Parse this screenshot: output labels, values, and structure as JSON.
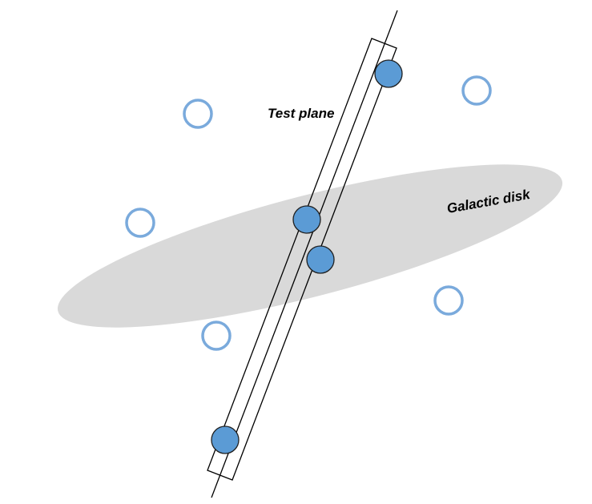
{
  "labels": {
    "test_plane": "Test plane",
    "galactic_disk": "Galactic disk"
  },
  "colors": {
    "background": "#ffffff",
    "disk_fill": "#d9d9d9",
    "filled_dot": "#5b9bd5",
    "filled_dot_stroke": "#1f1f1f",
    "hollow_dot_stroke": "#7aaadc",
    "line": "#000000"
  },
  "icons": {
    "filled_dot": "filled-circle",
    "hollow_dot": "hollow-circle"
  }
}
